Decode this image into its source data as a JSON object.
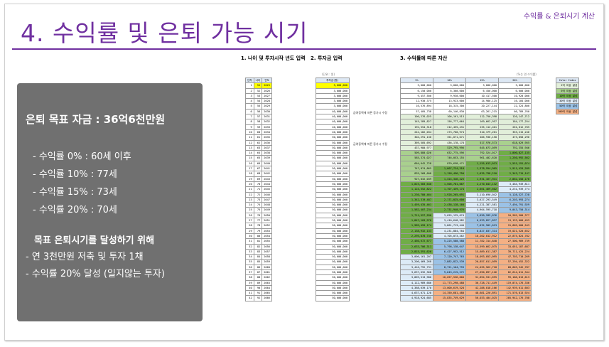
{
  "header": {
    "label": "수익률 & 은퇴시기 계산",
    "title": "4. 수익률 및 은퇴 가능 시기"
  },
  "summary": {
    "goal": "은퇴 목표 자금 : 36억6천만원",
    "rates": [
      "- 수익률   0% : 60세 이후",
      "- 수익률 10% : 77세",
      "- 수익률 15% : 73세",
      "- 수익률 20% : 70세"
    ],
    "subheading": "목표 은퇴시기를 달성하기 위해",
    "actions": [
      "- 연 3천만원 저축 및 투자 1채",
      "- 수익률 20% 달성 (일지않는 투자)"
    ]
  },
  "sections": {
    "s1": "1. 나이 및 투자시작 년도 입력",
    "s2": "2. 투자금 입력",
    "s3": "3. 수익률에 따른 자산"
  },
  "table_notes": {
    "unit_left": "(단위 : 원)",
    "unit_right": "(%는 연 수익률)",
    "note1": "급여증액에 따른 증가시 수정",
    "note2": "급여증액에 따른 증가시 수정"
  },
  "left_table": {
    "headers": [
      "년차",
      "나이",
      "연도"
    ],
    "rows": [
      [
        "1",
        "51",
        "2025"
      ],
      [
        "2",
        "52",
        "2026"
      ],
      [
        "3",
        "53",
        "2027"
      ],
      [
        "4",
        "54",
        "2028"
      ],
      [
        "5",
        "55",
        "2029"
      ],
      [
        "6",
        "56",
        "2030"
      ],
      [
        "7",
        "57",
        "2031"
      ],
      [
        "8",
        "58",
        "2032"
      ],
      [
        "9",
        "59",
        "2033"
      ],
      [
        "10",
        "60",
        "2034"
      ],
      [
        "11",
        "61",
        "2035"
      ],
      [
        "12",
        "62",
        "2036"
      ],
      [
        "13",
        "63",
        "2037"
      ],
      [
        "14",
        "64",
        "2038"
      ],
      [
        "15",
        "65",
        "2039"
      ],
      [
        "16",
        "66",
        "2040"
      ],
      [
        "17",
        "67",
        "2041"
      ],
      [
        "18",
        "68",
        "2042"
      ],
      [
        "19",
        "69",
        "2043"
      ],
      [
        "20",
        "70",
        "2044"
      ],
      [
        "21",
        "71",
        "2045"
      ],
      [
        "22",
        "72",
        "2046"
      ],
      [
        "23",
        "73",
        "2047"
      ],
      [
        "24",
        "74",
        "2048"
      ],
      [
        "25",
        "75",
        "2049"
      ],
      [
        "26",
        "76",
        "2050"
      ],
      [
        "27",
        "77",
        "2051"
      ],
      [
        "28",
        "78",
        "2052"
      ],
      [
        "29",
        "79",
        "2053"
      ],
      [
        "30",
        "80",
        "2054"
      ],
      [
        "31",
        "81",
        "2055"
      ],
      [
        "32",
        "82",
        "2056"
      ],
      [
        "33",
        "83",
        "2057"
      ],
      [
        "34",
        "84",
        "2058"
      ],
      [
        "35",
        "85",
        "2059"
      ],
      [
        "36",
        "86",
        "2060"
      ],
      [
        "37",
        "87",
        "2061"
      ],
      [
        "38",
        "88",
        "2062"
      ],
      [
        "39",
        "89",
        "2063"
      ],
      [
        "40",
        "90",
        "2064"
      ],
      [
        "41",
        "91",
        "2065"
      ],
      [
        "42",
        "92",
        "2066"
      ]
    ]
  },
  "invest_table": {
    "header": "투자금(원)",
    "rows": [
      "3,000,000",
      "3,000,000",
      "3,000,000",
      "3,000,000",
      "3,000,000",
      "40,000,000",
      "40,000,000",
      "40,000,000",
      "40,000,000",
      "40,000,000",
      "50,000,000",
      "50,000,000",
      "50,000,000",
      "50,000,000",
      "50,000,000",
      "50,000,000",
      "50,000,000",
      "50,000,000",
      "50,000,000",
      "50,000,000",
      "50,000,000",
      "50,000,000",
      "50,000,000",
      "50,000,000",
      "50,000,000",
      "50,000,000",
      "50,000,000",
      "50,000,000",
      "50,000,000",
      "50,000,000",
      "50,000,000",
      "50,000,000",
      "50,000,000",
      "50,000,000",
      "50,000,000",
      "50,000,000",
      "50,000,000",
      "50,000,000",
      "50,000,000",
      "50,000,000",
      "50,000,000",
      "50,000,000"
    ]
  },
  "result_table": {
    "headers": [
      "5%",
      "10%",
      "15%",
      "20%"
    ],
    "rows": [
      [
        "3,000,000",
        "3,000,000",
        "3,000,000",
        "3,000,000"
      ],
      [
        "6,150,000",
        "6,300,000",
        "6,450,000",
        "6,600,000"
      ],
      [
        "9,457,500",
        "9,930,000",
        "10,417,500",
        "10,920,000"
      ],
      [
        "12,930,375",
        "13,923,000",
        "14,980,125",
        "16,104,000"
      ],
      [
        "16,576,894",
        "18,315,300",
        "20,227,144",
        "22,324,800"
      ],
      [
        "57,405,738",
        "60,146,830",
        "63,261,215",
        "66,789,760"
      ],
      [
        "100,276,025",
        "106,161,513",
        "112,750,398",
        "120,147,712"
      ],
      [
        "145,289,827",
        "156,777,664",
        "169,662,957",
        "184,177,254"
      ],
      [
        "192,554,318",
        "212,455,431",
        "235,112,401",
        "261,012,705"
      ],
      [
        "242,182,034",
        "273,700,974",
        "310,379,261",
        "353,215,246"
      ],
      [
        "304,291,136",
        "351,071,071",
        "406,936,150",
        "473,858,296"
      ],
      [
        "369,505,692",
        "436,178,178",
        "517,976,573",
        "618,629,955"
      ],
      [
        "437,980,977",
        "529,795,996",
        "645,673,059",
        "792,355,946"
      ],
      [
        "509,880,026",
        "632,775,596",
        "792,524,017",
        "1,000,827,135"
      ],
      [
        "585,374,027",
        "746,053,155",
        "961,402,620",
        "1,250,992,562"
      ],
      [
        "664,642,728",
        "870,658,471",
        "1,155,613,013",
        "1,551,191,074"
      ],
      [
        "747,874,865",
        "1,007,724,318",
        "1,378,954,965",
        "1,911,429,289"
      ],
      [
        "835,268,608",
        "1,158,496,750",
        "1,635,798,210",
        "2,343,715,147"
      ],
      [
        "927,032,039",
        "1,324,346,425",
        "1,931,167,941",
        "2,862,458,176"
      ],
      [
        "1,023,383,640",
        "1,506,781,067",
        "2,270,843,132",
        "3,484,949,811"
      ],
      [
        "1,124,552,822",
        "1,707,459,174",
        "2,661,469,602",
        "4,231,939,774"
      ],
      [
        "1,230,780,464",
        "1,928,205,091",
        "3,110,690,042",
        "5,128,327,728"
      ],
      [
        "1,342,319,487",
        "2,171,025,600",
        "3,627,293,549",
        "6,203,993,274"
      ],
      [
        "1,459,435,461",
        "2,438,128,160",
        "4,221,387,581",
        "7,494,791,929"
      ],
      [
        "1,582,407,234",
        "2,731,940,976",
        "4,904,595,718",
        "9,043,750,314"
      ],
      [
        "1,711,527,596",
        "3,055,135,074",
        "5,690,285,076",
        "10,902,500,377"
      ],
      [
        "1,847,103,976",
        "3,410,648,582",
        "6,593,827,837",
        "13,133,000,453"
      ],
      [
        "1,989,459,174",
        "3,801,713,440",
        "7,632,902,013",
        "15,809,600,543"
      ],
      [
        "2,138,932,133",
        "4,231,884,784",
        "8,827,837,314",
        "19,021,520,652"
      ],
      [
        "2,295,878,740",
        "4,705,073,262",
        "10,202,012,912",
        "22,875,824,782"
      ],
      [
        "2,460,672,677",
        "5,225,580,588",
        "11,782,314,848",
        "27,500,989,739"
      ],
      [
        "2,633,706,311",
        "5,798,138,647",
        "13,599,662,075",
        "33,051,187,687"
      ],
      [
        "2,815,391,626",
        "6,427,952,512",
        "15,689,611,387",
        "39,711,425,224"
      ],
      [
        "3,006,161,207",
        "7,120,747,763",
        "18,093,053,095",
        "47,703,710,269"
      ],
      [
        "3,206,469,268",
        "7,882,822,539",
        "20,857,011,059",
        "57,294,452,322"
      ],
      [
        "3,416,792,731",
        "8,721,104,793",
        "24,035,562,718",
        "68,803,342,787"
      ],
      [
        "3,637,632,368",
        "9,643,215,272",
        "27,690,897,126",
        "82,614,011,344"
      ],
      [
        "3,869,513,986",
        "10,657,536,800",
        "31,894,531,695",
        "99,186,813,613"
      ],
      [
        "4,112,989,686",
        "11,773,290,480",
        "36,728,711,449",
        "119,074,176,336"
      ],
      [
        "4,368,639,170",
        "13,000,619,528",
        "42,288,018,166",
        "142,939,011,603"
      ],
      [
        "4,637,071,128",
        "14,350,681,480",
        "48,681,220,891",
        "171,576,813,924"
      ],
      [
        "4,918,924,685",
        "15,835,749,629",
        "56,033,404,025",
        "205,942,176,708"
      ]
    ]
  },
  "color_index": {
    "header": "Color Index",
    "items": [
      "1억 이상 달성",
      "5억 이상 달성",
      "10억 이상 달성",
      "30억 이상 달성",
      "50억 이상 달성",
      "100억 이상 달성"
    ],
    "colors": [
      "#e2efda",
      "#a9d08e",
      "#70ad47",
      "#ddebf7",
      "#9bc2e6",
      "#f4b084"
    ]
  }
}
